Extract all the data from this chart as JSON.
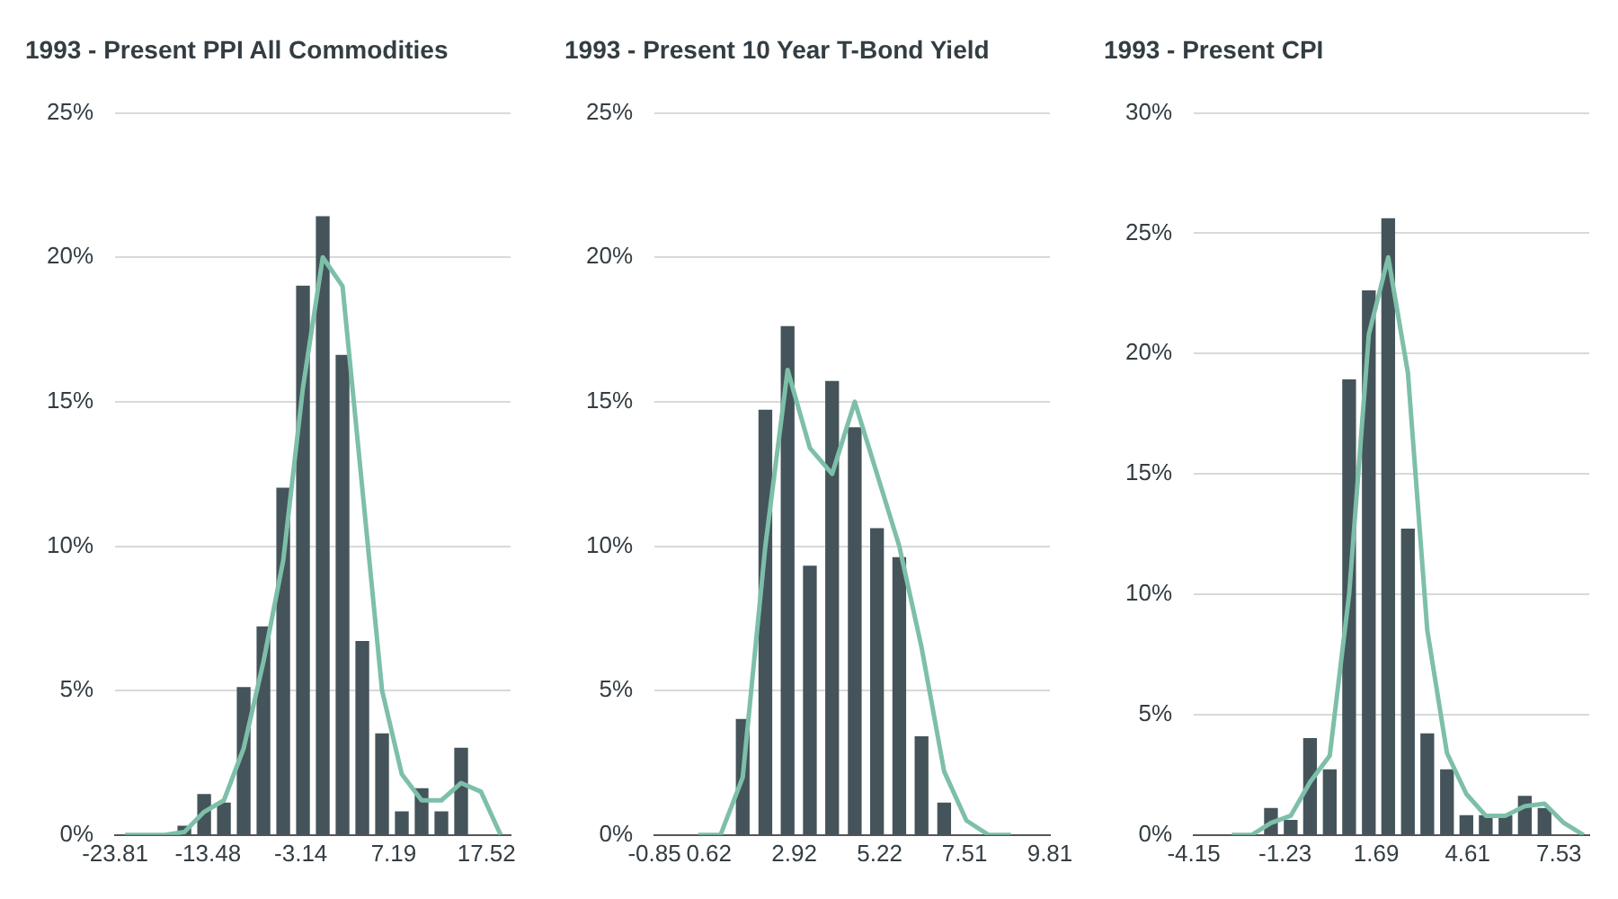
{
  "chart_data": [
    {
      "type": "bar",
      "title": "1993 - Present PPI All Commodities",
      "x": [
        -22.7,
        -20.5,
        -18.3,
        -16.1,
        -13.9,
        -11.7,
        -9.5,
        -7.3,
        -5.1,
        -2.9,
        -0.7,
        1.5,
        3.7,
        5.9,
        8.1,
        10.3,
        12.5,
        14.7,
        16.9,
        19.1
      ],
      "series": [
        {
          "color": "#44545a",
          "values": [
            null,
            null,
            null,
            0.3,
            1.4,
            1.1,
            5.1,
            7.2,
            12.0,
            19.0,
            21.4,
            16.6,
            6.7,
            3.5,
            0.8,
            1.6,
            0.8,
            3.0,
            null,
            null
          ]
        },
        {
          "type": "line",
          "color": "#7dbfa9",
          "values": [
            0,
            0,
            0,
            0.1,
            0.8,
            1.2,
            3.0,
            6.0,
            9.5,
            15.5,
            20.0,
            19.0,
            12.0,
            5.0,
            2.1,
            1.2,
            1.2,
            1.8,
            1.5,
            0
          ]
        }
      ],
      "xlim": [
        -23.81,
        20.2
      ],
      "xticks": [
        -23.81,
        -13.48,
        -3.14,
        7.19,
        17.52
      ],
      "ylim": [
        0,
        25
      ],
      "yticks": [
        {
          "value": 0,
          "label": "0%"
        },
        {
          "value": 5,
          "label": "5%"
        },
        {
          "value": 10,
          "label": "10%"
        },
        {
          "value": 15,
          "label": "15%"
        },
        {
          "value": 20,
          "label": "20%"
        },
        {
          "value": 25,
          "label": "25%"
        }
      ],
      "grid": "y",
      "legend": false,
      "marker": "none",
      "line_style": "solid"
    },
    {
      "type": "bar",
      "title": "1993 - Present 10 Year T-Bond Yield",
      "x": [
        0.33,
        0.93,
        1.53,
        2.14,
        2.74,
        3.34,
        3.94,
        4.55,
        5.15,
        5.75,
        6.35,
        6.96,
        7.56,
        8.16,
        8.76
      ],
      "series": [
        {
          "color": "#44545a",
          "values": [
            null,
            null,
            4.0,
            14.7,
            17.6,
            9.3,
            15.7,
            14.1,
            10.6,
            9.6,
            3.4,
            1.1,
            null,
            null,
            null
          ]
        },
        {
          "type": "line",
          "color": "#7dbfa9",
          "values": [
            0,
            0,
            2.0,
            10.0,
            16.1,
            13.4,
            12.5,
            15.0,
            12.5,
            10.0,
            6.5,
            2.2,
            0.5,
            0,
            0
          ]
        }
      ],
      "xlim": [
        -0.85,
        9.81
      ],
      "xticks": [
        -0.85,
        0.62,
        2.92,
        5.22,
        7.51,
        9.81
      ],
      "ylim": [
        0,
        25
      ],
      "yticks": [
        {
          "value": 0,
          "label": "0%"
        },
        {
          "value": 5,
          "label": "5%"
        },
        {
          "value": 10,
          "label": "10%"
        },
        {
          "value": 15,
          "label": "15%"
        },
        {
          "value": 20,
          "label": "20%"
        },
        {
          "value": 25,
          "label": "25%"
        }
      ],
      "grid": "y",
      "legend": false,
      "marker": "none",
      "line_style": "solid"
    },
    {
      "type": "bar",
      "title": "1993 - Present CPI",
      "x": [
        -2.93,
        -2.3,
        -1.68,
        -1.05,
        -0.43,
        0.2,
        0.82,
        1.45,
        2.07,
        2.7,
        3.32,
        3.95,
        4.57,
        5.19,
        5.82,
        6.44,
        7.07,
        7.69,
        8.32
      ],
      "series": [
        {
          "color": "#44545a",
          "values": [
            null,
            null,
            1.1,
            0.6,
            4.0,
            2.7,
            18.9,
            22.6,
            25.6,
            12.7,
            4.2,
            2.7,
            0.8,
            0.8,
            0.8,
            1.6,
            1.1,
            null,
            null
          ]
        },
        {
          "type": "line",
          "color": "#7dbfa9",
          "values": [
            0,
            0,
            0.5,
            0.8,
            2.2,
            3.3,
            10.0,
            20.8,
            24.0,
            19.2,
            8.5,
            3.4,
            1.7,
            0.8,
            0.8,
            1.2,
            1.3,
            0.5,
            0
          ]
        }
      ],
      "xlim": [
        -4.15,
        8.5
      ],
      "xticks": [
        -4.15,
        -1.23,
        1.69,
        4.61,
        7.53
      ],
      "ylim": [
        0,
        30
      ],
      "yticks": [
        {
          "value": 0,
          "label": "0%"
        },
        {
          "value": 5,
          "label": "5%"
        },
        {
          "value": 10,
          "label": "10%"
        },
        {
          "value": 15,
          "label": "15%"
        },
        {
          "value": 20,
          "label": "20%"
        },
        {
          "value": 25,
          "label": "25%"
        },
        {
          "value": 30,
          "label": "30%"
        }
      ],
      "grid": "y",
      "legend": false,
      "marker": "none",
      "line_style": "solid"
    }
  ]
}
